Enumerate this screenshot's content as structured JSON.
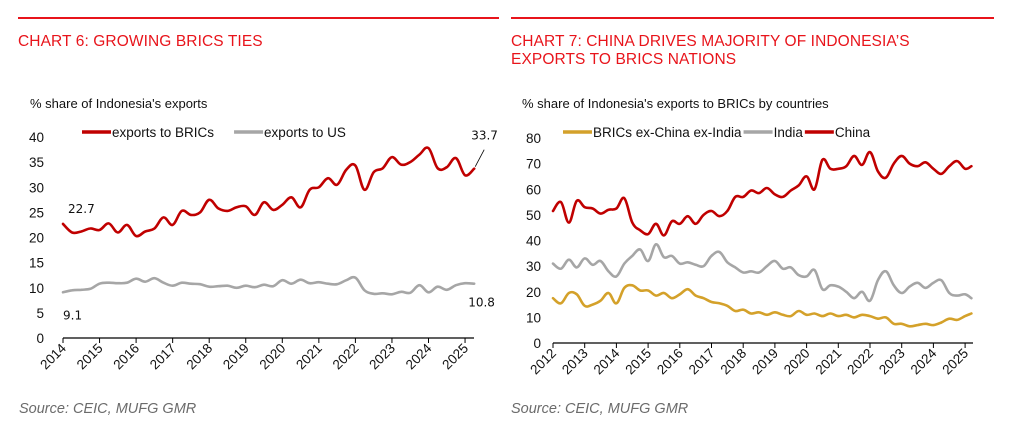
{
  "charts": [
    {
      "title": "CHART 6: GROWING BRICS TIES",
      "subtitle": "% share of Indonesia's exports",
      "source": "Source: CEIC, MUFG GMR"
    },
    {
      "title_line1": "CHART 7: CHINA DRIVES MAJORITY OF INDONESIA’S",
      "title_line2": "EXPORTS TO BRICS NATIONS",
      "subtitle": "% share of Indonesia's exports to BRICs by countries",
      "source": "Source: CEIC, MUFG GMR"
    }
  ],
  "colors": {
    "accent": "#e8141b",
    "brics": "#c00000",
    "us": "#a6a6a6",
    "china": "#c00000",
    "india": "#a6a6a6",
    "other": "#d4a12a"
  },
  "chart_data": [
    {
      "type": "line",
      "title": "CHART 6: GROWING BRICS TIES",
      "ylabel": "% share of Indonesia's exports",
      "xlabel": "",
      "ylim": [
        0,
        40
      ],
      "yticks": [
        "0",
        "5",
        "10",
        "15",
        "20",
        "25",
        "30",
        "35",
        "40"
      ],
      "xlim": [
        2014,
        2025.3
      ],
      "xticks": [
        "2014",
        "2015",
        "2016",
        "2017",
        "2018",
        "2019",
        "2020",
        "2021",
        "2022",
        "2023",
        "2024",
        "2025"
      ],
      "grid": false,
      "legend": "top-left",
      "x": [
        2014.0,
        2014.25,
        2014.5,
        2014.75,
        2015.0,
        2015.25,
        2015.5,
        2015.75,
        2016.0,
        2016.25,
        2016.5,
        2016.75,
        2017.0,
        2017.25,
        2017.5,
        2017.75,
        2018.0,
        2018.25,
        2018.5,
        2018.75,
        2019.0,
        2019.25,
        2019.5,
        2019.75,
        2020.0,
        2020.25,
        2020.5,
        2020.75,
        2021.0,
        2021.25,
        2021.5,
        2021.75,
        2022.0,
        2022.25,
        2022.5,
        2022.75,
        2023.0,
        2023.25,
        2023.5,
        2023.75,
        2024.0,
        2024.25,
        2024.5,
        2024.75,
        2025.0,
        2025.25
      ],
      "series": [
        {
          "name": "exports to BRICs",
          "color": "#c00000",
          "values": [
            22.7,
            21.0,
            21.2,
            21.8,
            21.5,
            22.8,
            21.0,
            22.5,
            20.3,
            21.2,
            21.8,
            24.0,
            22.5,
            25.3,
            24.5,
            25.0,
            27.5,
            25.8,
            25.3,
            26.0,
            26.2,
            24.5,
            27.0,
            25.5,
            26.5,
            28.0,
            26.0,
            29.5,
            30.0,
            31.8,
            30.5,
            33.5,
            34.3,
            29.5,
            33.0,
            33.8,
            36.0,
            34.5,
            35.0,
            36.5,
            37.8,
            33.8,
            34.0,
            35.8,
            32.4,
            33.7
          ]
        },
        {
          "name": "exports to US",
          "color": "#a6a6a6",
          "values": [
            9.1,
            9.5,
            9.6,
            9.8,
            10.8,
            11.0,
            10.9,
            11.0,
            11.8,
            11.2,
            11.9,
            11.0,
            10.4,
            11.0,
            10.8,
            10.7,
            10.2,
            10.3,
            10.4,
            10.0,
            10.4,
            10.1,
            10.6,
            10.3,
            11.5,
            10.8,
            11.6,
            10.9,
            11.1,
            10.8,
            10.7,
            11.5,
            12.0,
            9.5,
            8.8,
            8.9,
            8.7,
            9.2,
            9.0,
            10.5,
            9.1,
            10.2,
            9.6,
            10.5,
            10.9,
            10.8
          ]
        }
      ],
      "annotations": [
        {
          "text": "22.7",
          "series": "exports to BRICs",
          "point": "first"
        },
        {
          "text": "9.1",
          "series": "exports to US",
          "point": "first"
        },
        {
          "text": "33.7",
          "series": "exports to BRICs",
          "point": "last"
        },
        {
          "text": "10.8",
          "series": "exports to US",
          "point": "last"
        }
      ]
    },
    {
      "type": "line",
      "title": "CHART 7: CHINA DRIVES MAJORITY OF INDONESIA’S EXPORTS TO BRICS NATIONS",
      "ylabel": "% share of Indonesia's exports to BRICs by countries",
      "xlabel": "",
      "ylim": [
        0,
        80
      ],
      "yticks": [
        "0",
        "10",
        "20",
        "30",
        "40",
        "50",
        "60",
        "70",
        "80"
      ],
      "xlim": [
        2012,
        2025.25
      ],
      "xticks": [
        "2012",
        "2013",
        "2014",
        "2015",
        "2016",
        "2017",
        "2018",
        "2019",
        "2020",
        "2021",
        "2022",
        "2023",
        "2024",
        "2025"
      ],
      "grid": false,
      "legend": "top",
      "x": [
        2012.0,
        2012.25,
        2012.5,
        2012.75,
        2013.0,
        2013.25,
        2013.5,
        2013.75,
        2014.0,
        2014.25,
        2014.5,
        2014.75,
        2015.0,
        2015.25,
        2015.5,
        2015.75,
        2016.0,
        2016.25,
        2016.5,
        2016.75,
        2017.0,
        2017.25,
        2017.5,
        2017.75,
        2018.0,
        2018.25,
        2018.5,
        2018.75,
        2019.0,
        2019.25,
        2019.5,
        2019.75,
        2020.0,
        2020.25,
        2020.5,
        2020.75,
        2021.0,
        2021.25,
        2021.5,
        2021.75,
        2022.0,
        2022.25,
        2022.5,
        2022.75,
        2023.0,
        2023.25,
        2023.5,
        2023.75,
        2024.0,
        2024.25,
        2024.5,
        2024.75,
        2025.0,
        2025.2
      ],
      "series": [
        {
          "name": "BRICs ex-China ex-India",
          "color": "#d4a12a",
          "values": [
            17.5,
            15.5,
            19.5,
            19.0,
            14.5,
            15.0,
            16.5,
            19.5,
            15.5,
            21.5,
            22.5,
            20.5,
            20.5,
            18.5,
            19.5,
            17.5,
            19.0,
            21.0,
            18.5,
            17.5,
            16.0,
            15.5,
            14.5,
            12.5,
            13.0,
            11.5,
            12.0,
            11.0,
            12.0,
            11.0,
            10.5,
            12.5,
            11.0,
            11.5,
            10.5,
            11.5,
            10.5,
            11.0,
            10.0,
            11.0,
            10.5,
            9.5,
            10.0,
            7.5,
            7.5,
            6.5,
            7.0,
            7.5,
            7.0,
            8.0,
            9.5,
            9.0,
            10.5,
            11.5
          ]
        },
        {
          "name": "India",
          "color": "#a6a6a6",
          "values": [
            31.0,
            29.0,
            32.5,
            29.5,
            33.0,
            30.5,
            32.0,
            28.0,
            26.0,
            31.0,
            34.0,
            36.5,
            32.0,
            38.5,
            33.5,
            34.0,
            31.0,
            31.5,
            30.5,
            30.0,
            34.0,
            35.5,
            31.5,
            29.5,
            27.5,
            28.0,
            27.5,
            30.0,
            32.0,
            29.0,
            29.5,
            26.5,
            26.0,
            28.5,
            21.0,
            22.5,
            22.0,
            20.0,
            17.5,
            20.0,
            16.5,
            24.5,
            28.0,
            22.5,
            19.5,
            22.0,
            23.5,
            21.5,
            23.5,
            24.5,
            19.5,
            18.5,
            19.0,
            17.5
          ]
        },
        {
          "name": "China",
          "color": "#c00000",
          "values": [
            51.5,
            55.0,
            47.0,
            55.5,
            53.0,
            52.5,
            50.5,
            52.0,
            52.5,
            56.5,
            47.0,
            44.0,
            42.5,
            46.5,
            42.0,
            47.5,
            46.5,
            49.5,
            46.5,
            50.0,
            51.5,
            49.5,
            51.5,
            57.0,
            57.0,
            59.5,
            58.5,
            60.5,
            58.0,
            57.0,
            59.5,
            61.5,
            65.0,
            60.0,
            71.5,
            68.0,
            68.0,
            69.0,
            73.0,
            69.5,
            74.5,
            67.0,
            64.5,
            70.0,
            73.0,
            70.0,
            69.0,
            70.5,
            68.0,
            66.0,
            69.0,
            71.0,
            68.0,
            69.0
          ]
        }
      ]
    }
  ]
}
